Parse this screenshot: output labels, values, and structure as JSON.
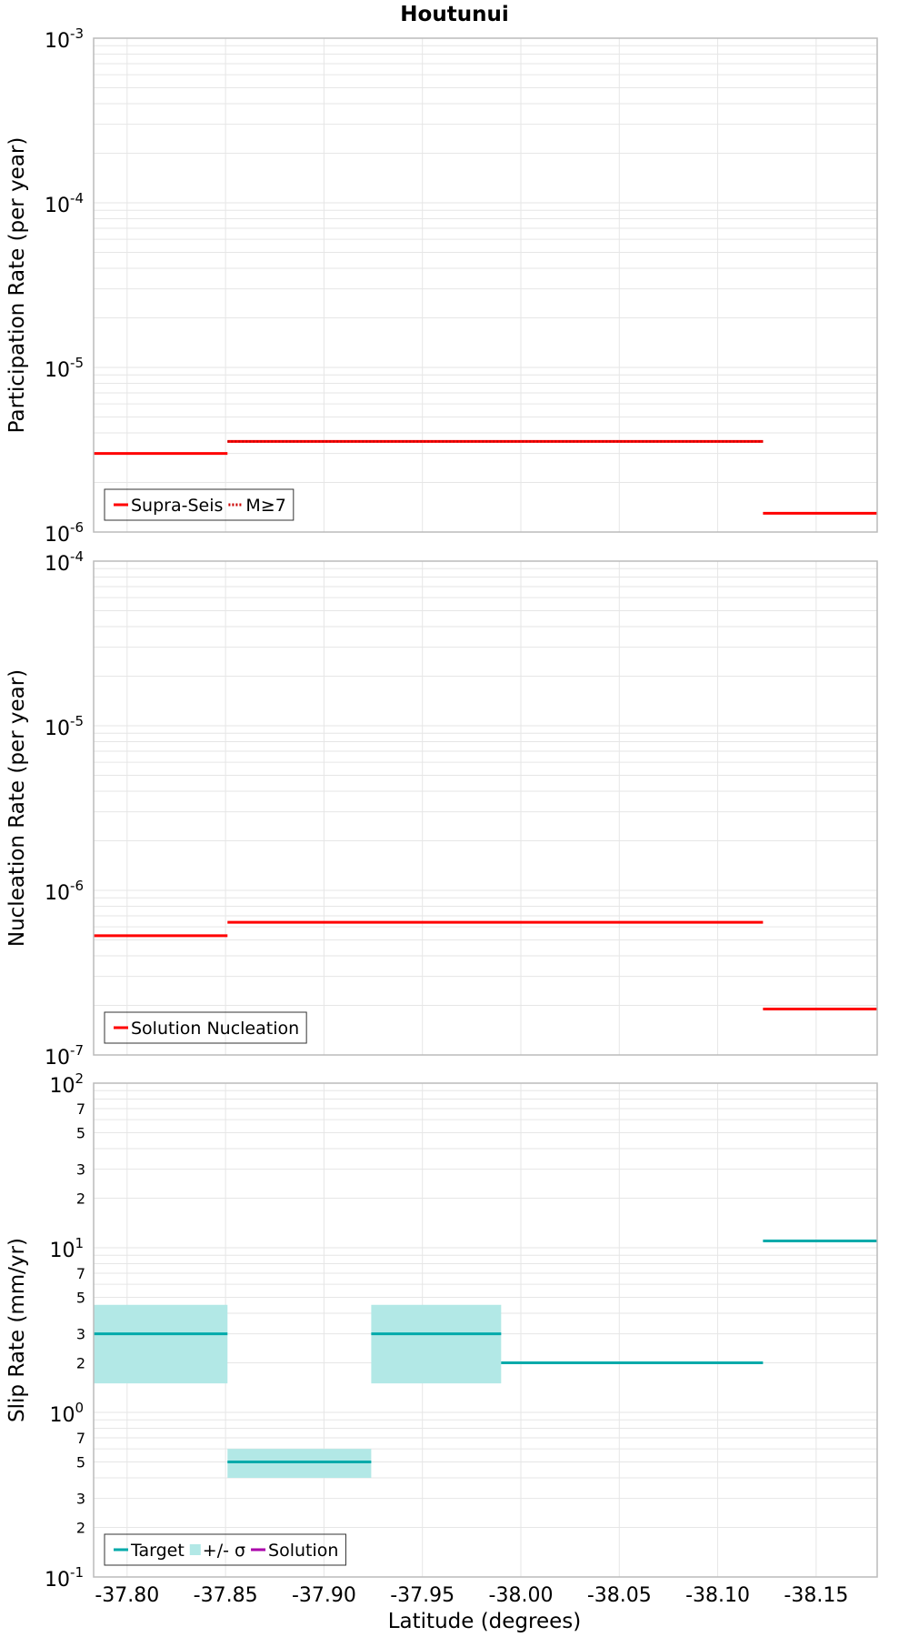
{
  "title": "Houtunui",
  "xlabel": "Latitude (degrees)",
  "x_ticks": [
    "-37.80",
    "-37.85",
    "-37.90",
    "-37.95",
    "-38.00",
    "-38.05",
    "-38.10",
    "-38.15"
  ],
  "colors": {
    "rate": "#ff0000",
    "target": "#00aaaa",
    "sigma_fill": "#b2e8e6",
    "solution": "#aa00aa",
    "grid": "#e6e6e6",
    "frame": "#bbbbbb"
  },
  "chart_data": [
    {
      "type": "line",
      "panel": "participation",
      "ylabel": "Participation Rate (per year)",
      "yscale": "log",
      "ylim": [
        1e-06,
        0.001
      ],
      "xlim": [
        -37.783,
        -38.181
      ],
      "y_ticks": [
        {
          "value": 0.001,
          "base": "10",
          "exp": "-3"
        },
        {
          "value": 0.0001,
          "base": "10",
          "exp": "-4"
        },
        {
          "value": 1e-05,
          "base": "10",
          "exp": "-5"
        },
        {
          "value": 1e-06,
          "base": "10",
          "exp": "-6"
        }
      ],
      "legend": {
        "position": "bottom-left",
        "entries": [
          "Supra-Seis",
          "M≥7"
        ]
      },
      "series": [
        {
          "name": "Supra-Seis",
          "style": "solid",
          "segments": [
            {
              "x": [
                -37.783,
                -37.851
              ],
              "y": 3e-06
            },
            {
              "x": [
                -37.851,
                -38.123
              ],
              "y": 3.55e-06
            },
            {
              "x": [
                -38.123,
                -38.181
              ],
              "y": 1.3e-06
            }
          ]
        },
        {
          "name": "M≥7",
          "style": "dotted",
          "segments": [
            {
              "x": [
                -37.851,
                -38.123
              ],
              "y": 3.55e-06
            }
          ]
        }
      ]
    },
    {
      "type": "line",
      "panel": "nucleation",
      "ylabel": "Nucleation Rate (per year)",
      "yscale": "log",
      "ylim": [
        1e-07,
        0.0001
      ],
      "xlim": [
        -37.783,
        -38.181
      ],
      "y_ticks": [
        {
          "value": 0.0001,
          "base": "10",
          "exp": "-4"
        },
        {
          "value": 1e-05,
          "base": "10",
          "exp": "-5"
        },
        {
          "value": 1e-06,
          "base": "10",
          "exp": "-6"
        },
        {
          "value": 1e-07,
          "base": "10",
          "exp": "-7"
        }
      ],
      "legend": {
        "position": "bottom-left",
        "entries": [
          "Solution Nucleation"
        ]
      },
      "series": [
        {
          "name": "Solution Nucleation",
          "style": "solid",
          "segments": [
            {
              "x": [
                -37.783,
                -37.851
              ],
              "y": 5.3e-07
            },
            {
              "x": [
                -37.851,
                -38.123
              ],
              "y": 6.4e-07
            },
            {
              "x": [
                -38.123,
                -38.181
              ],
              "y": 1.9e-07
            }
          ]
        }
      ]
    },
    {
      "type": "line",
      "panel": "slip",
      "ylabel": "Slip Rate (mm/yr)",
      "yscale": "log",
      "ylim": [
        0.1,
        100
      ],
      "xlim": [
        -37.783,
        -38.181
      ],
      "y_ticks": [
        {
          "value": 100,
          "base": "10",
          "exp": "2"
        },
        {
          "value": 10,
          "base": "10",
          "exp": "1"
        },
        {
          "value": 1,
          "base": "10",
          "exp": "0"
        },
        {
          "value": 0.1,
          "base": "10",
          "exp": "-1"
        }
      ],
      "y_minor_labels": [
        {
          "value": 70,
          "label": "7"
        },
        {
          "value": 50,
          "label": "5"
        },
        {
          "value": 30,
          "label": "3"
        },
        {
          "value": 20,
          "label": "2"
        },
        {
          "value": 7,
          "label": "7"
        },
        {
          "value": 5,
          "label": "5"
        },
        {
          "value": 3,
          "label": "3"
        },
        {
          "value": 2,
          "label": "2"
        },
        {
          "value": 0.7,
          "label": "7"
        },
        {
          "value": 0.5,
          "label": "5"
        },
        {
          "value": 0.3,
          "label": "3"
        },
        {
          "value": 0.2,
          "label": "2"
        }
      ],
      "legend": {
        "position": "bottom-left",
        "entries": [
          "Target",
          "+/- σ",
          "Solution"
        ]
      },
      "sigma_bands": [
        {
          "x": [
            -37.783,
            -37.851
          ],
          "y": [
            1.5,
            4.5
          ]
        },
        {
          "x": [
            -37.851,
            -37.924
          ],
          "y": [
            0.4,
            0.6
          ]
        },
        {
          "x": [
            -37.924,
            -37.99
          ],
          "y": [
            1.5,
            4.5
          ]
        }
      ],
      "series": [
        {
          "name": "Target",
          "style": "solid",
          "segments": [
            {
              "x": [
                -37.783,
                -37.851
              ],
              "y": 3.0
            },
            {
              "x": [
                -37.851,
                -37.924
              ],
              "y": 0.5
            },
            {
              "x": [
                -37.924,
                -37.99
              ],
              "y": 3.0
            },
            {
              "x": [
                -37.99,
                -38.123
              ],
              "y": 2.0
            },
            {
              "x": [
                -38.123,
                -38.181
              ],
              "y": 11.0
            }
          ]
        }
      ]
    }
  ]
}
